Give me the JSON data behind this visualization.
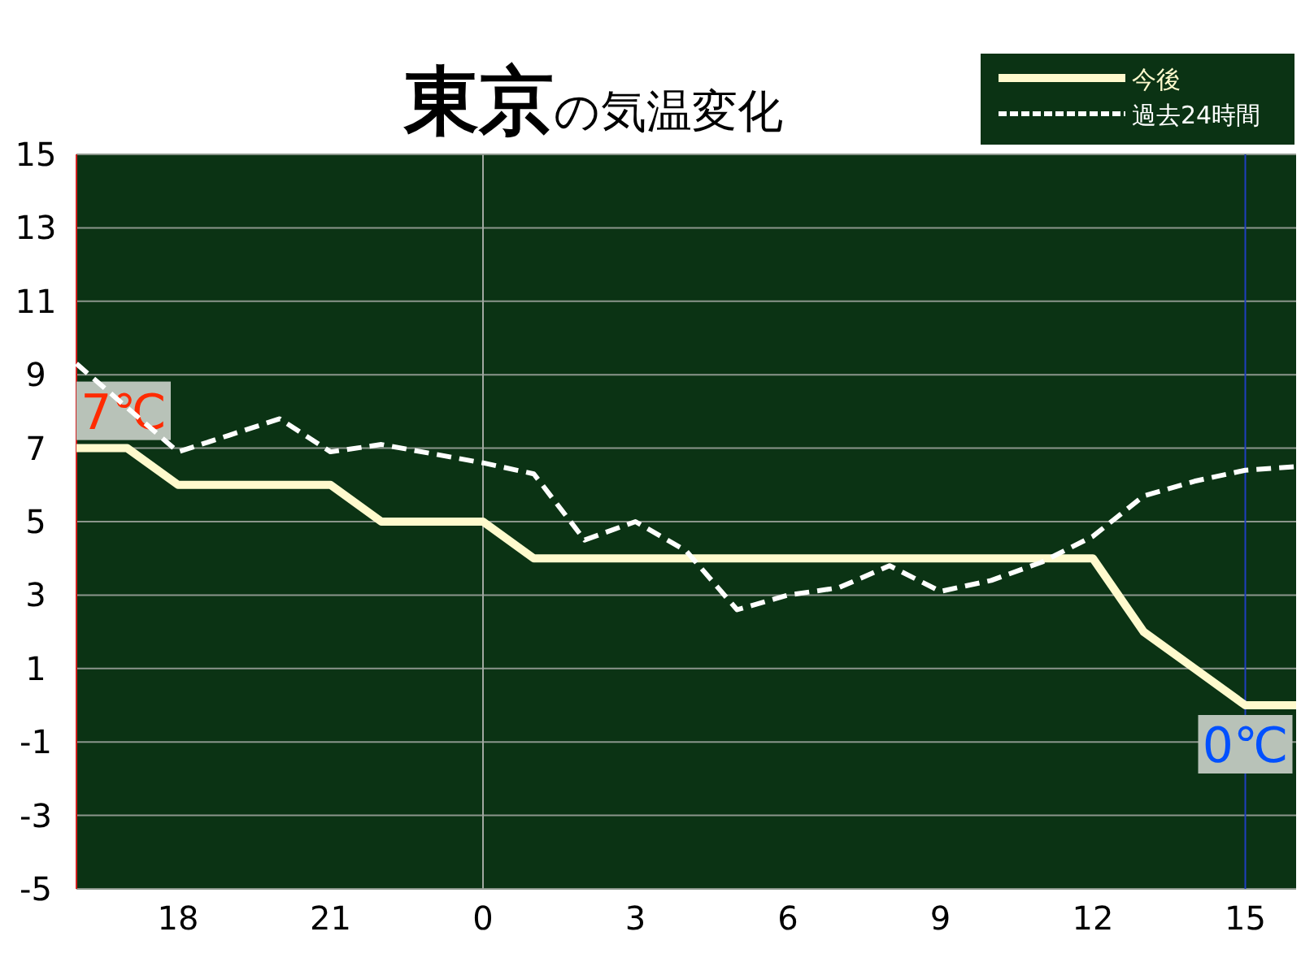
{
  "chart_data": {
    "type": "line",
    "title": "**東京**の気温変化",
    "categories": [
      null,
      null,
      "18",
      null,
      null,
      "21",
      null,
      null,
      "0",
      null,
      null,
      "3",
      null,
      null,
      "6",
      null,
      null,
      "9",
      null,
      null,
      "12",
      null,
      null,
      "15",
      null
    ],
    "series": [
      {
        "name": "今後",
        "color": "#fffacd",
        "line_style": "solid",
        "values": [
          7,
          7,
          6,
          6,
          6,
          6,
          5,
          5,
          5,
          4,
          4,
          4,
          4,
          4,
          4,
          4,
          4,
          4,
          4,
          4,
          4,
          2,
          1,
          0,
          0
        ]
      },
      {
        "name": "過去24時間",
        "color": "#ffffff",
        "line_style": "dashed",
        "values": [
          9.3,
          8.1,
          6.9,
          7.35,
          7.8,
          6.9,
          7.1,
          6.85,
          6.6,
          6.3,
          4.5,
          5.0,
          4.2,
          2.6,
          3.0,
          3.2,
          3.8,
          3.1,
          3.4,
          3.9,
          4.6,
          5.7,
          6.1,
          6.4,
          6.5
        ]
      }
    ],
    "ylim": [
      -5,
      15
    ],
    "yticks": [
      -5,
      -3,
      -1,
      1,
      3,
      5,
      7,
      9,
      11,
      13,
      15
    ],
    "grid": "y",
    "legend": "top right",
    "marker": "none",
    "ref_lines": [
      {
        "axis": "x",
        "value": "0",
        "color": "#a0a8a0"
      },
      {
        "axis": "x",
        "value": "15",
        "color": "#1f3fbf"
      }
    ],
    "annotations": [
      {
        "text": "7℃",
        "y": 7
      },
      {
        "text": "0℃",
        "x": "15",
        "y": 0
      }
    ]
  }
}
